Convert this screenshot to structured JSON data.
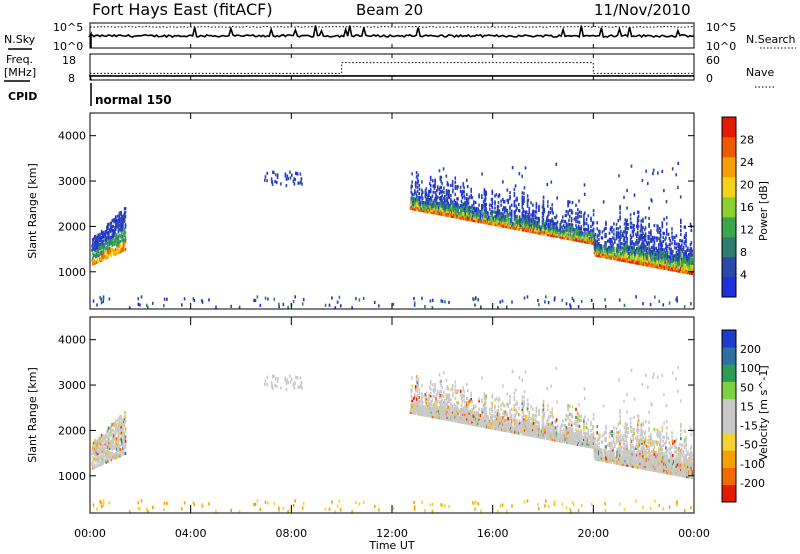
{
  "header": {
    "station": "Fort Hays East (fitACF)",
    "beam": "Beam 20",
    "date": "11/Nov/2010"
  },
  "side_labels": {
    "nsky": "N.Sky",
    "freq_line1": "Freq.",
    "freq_line2": "[MHz]",
    "cpid": "CPID",
    "nsearch": "N.Search",
    "nave": "Nave",
    "cpid_value": "normal 150"
  },
  "colors": {
    "power_scale": [
      "#1f2fd9",
      "#2a4aa6",
      "#2e7d6e",
      "#3aa84a",
      "#8ccf2e",
      "#f2d21b",
      "#f5a000",
      "#ee5a00",
      "#e21b00"
    ],
    "velocity_scale": [
      "#1d3cc8",
      "#2c6fa0",
      "#2d9a55",
      "#7cd042",
      "#c8c8c8",
      "#c8c8c8",
      "#f5d233",
      "#f5a100",
      "#f06a00",
      "#e31a00"
    ],
    "ground_scatter": "#c8c8c8"
  },
  "chart_data": [
    {
      "type": "line",
      "name": "noise-panel",
      "left_label": "N.Sky",
      "right_label": "N.Search",
      "left_ticks": [
        "10^5",
        "10^0"
      ],
      "right_ticks": [
        "10^5",
        "10^0"
      ],
      "x_range": [
        0,
        24
      ]
    },
    {
      "type": "line",
      "name": "frequency-nave-panel",
      "left_ticks": [
        "18",
        "8"
      ],
      "right_ticks": [
        "60",
        "0"
      ],
      "frequency_mhz": {
        "x": [
          0,
          0.05,
          10,
          10,
          20,
          20,
          24
        ],
        "y": [
          10.3,
          10.3,
          10.3,
          10.3,
          10.3,
          10.3,
          10.3
        ]
      },
      "nave": {
        "x": [
          0,
          10,
          10,
          20,
          20,
          24
        ],
        "y": [
          22,
          22,
          58,
          58,
          22,
          22
        ]
      },
      "x_range": [
        0,
        24
      ]
    },
    {
      "type": "heatmap",
      "name": "power-panel",
      "ylabel": "Slant Range [km]",
      "y_ticks": [
        "1000",
        "2000",
        "3000",
        "4000"
      ],
      "y_tick_values": [
        1000,
        2000,
        3000,
        4000
      ],
      "ylim": [
        180,
        4500
      ],
      "colorbar_label": "Power [dB]",
      "colorbar_ticks": [
        "4",
        "8",
        "12",
        "16",
        "20",
        "24",
        "28"
      ],
      "colorbar_range": [
        0,
        30
      ]
    },
    {
      "type": "heatmap",
      "name": "velocity-panel",
      "ylabel": "Slant Range [km]",
      "y_ticks": [
        "1000",
        "2000",
        "3000",
        "4000"
      ],
      "y_tick_values": [
        1000,
        2000,
        3000,
        4000
      ],
      "ylim": [
        180,
        4500
      ],
      "colorbar_label": "Velocity [m s^-1]",
      "colorbar_ticks": [
        "200",
        "100",
        "50",
        "15",
        "-15",
        "-50",
        "-100",
        "-200"
      ],
      "xlabel": "Time UT",
      "x_ticks": [
        "00:00",
        "04:00",
        "08:00",
        "12:00",
        "16:00",
        "20:00",
        "00:00"
      ],
      "x_tick_values": [
        0,
        4,
        8,
        12,
        16,
        20,
        24
      ],
      "x_range": [
        0,
        24
      ]
    }
  ]
}
